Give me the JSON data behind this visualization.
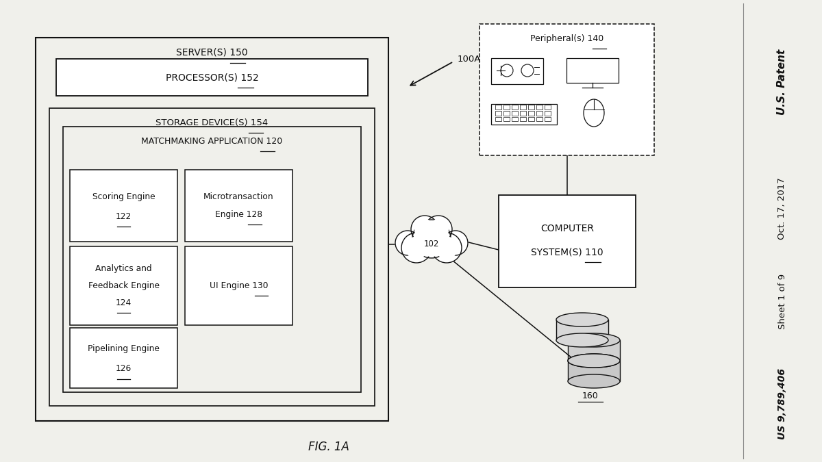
{
  "bg_color": "#f0f0eb",
  "line_color": "#111111",
  "fig_caption": "FIG. 1A",
  "right_text_lines": [
    "U.S. Patent",
    "Oct. 17, 2017",
    "Sheet 1 of 9",
    "US 9,789,406"
  ],
  "label_100A": "100A",
  "label_102": "102",
  "label_110_line1": "COMPUTER",
  "label_110_line2": "SYSTEM(S) ",
  "label_110_num": "110",
  "label_140": "Peripheral(s) ",
  "label_140_num": "140",
  "label_150": "SERVER(S) ",
  "label_150_num": "150",
  "label_152": "PROCESSOR(S) ",
  "label_152_num": "152",
  "label_154": "STORAGE DEVICE(S) ",
  "label_154_num": "154",
  "label_120": "MATCHMAKING APPLICATION ",
  "label_120_num": "120",
  "label_122_line1": "Scoring Engine",
  "label_122_num": "122",
  "label_124_line1": "Analytics and",
  "label_124_line2": "Feedback Engine",
  "label_124_num": "124",
  "label_126_line1": "Pipelining Engine",
  "label_126_num": "126",
  "label_128_line1": "Microtransaction",
  "label_128_line2": "Engine ",
  "label_128_num": "128",
  "label_130_line1": "UI Engine ",
  "label_130_num": "130",
  "label_160": "160"
}
